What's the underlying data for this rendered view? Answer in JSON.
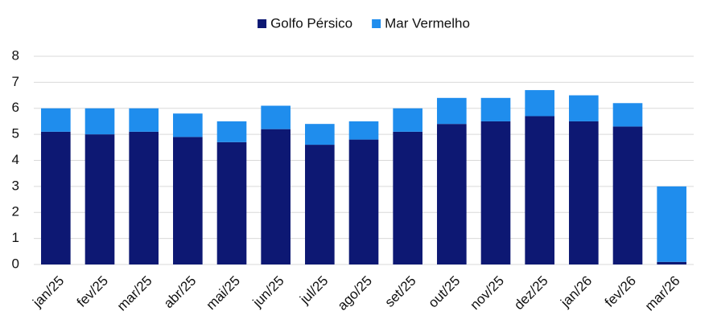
{
  "chart_data": {
    "type": "stacked_bar",
    "categories": [
      "jan/25",
      "fev/25",
      "mar/25",
      "abr/25",
      "mai/25",
      "jun/25",
      "jul/25",
      "ago/25",
      "set/25",
      "out/25",
      "nov/25",
      "dez/25",
      "jan/26",
      "fev/26",
      "mar/26"
    ],
    "series": [
      {
        "name": "Golfo Pérsico",
        "color": "#0d1873",
        "values": [
          5.1,
          5.0,
          5.1,
          4.9,
          4.7,
          5.2,
          4.6,
          4.8,
          5.1,
          5.4,
          5.5,
          5.7,
          5.5,
          5.3,
          0.1
        ]
      },
      {
        "name": "Mar Vermelho",
        "color": "#1f8ded",
        "values": [
          0.9,
          1.0,
          0.9,
          0.9,
          0.8,
          0.9,
          0.8,
          0.7,
          0.9,
          1.0,
          0.9,
          1.0,
          1.0,
          0.9,
          2.9
        ]
      }
    ],
    "ylim": [
      0,
      8
    ],
    "yticks": [
      0,
      1,
      2,
      3,
      4,
      5,
      6,
      7,
      8
    ],
    "grid": true,
    "legend": "top"
  }
}
